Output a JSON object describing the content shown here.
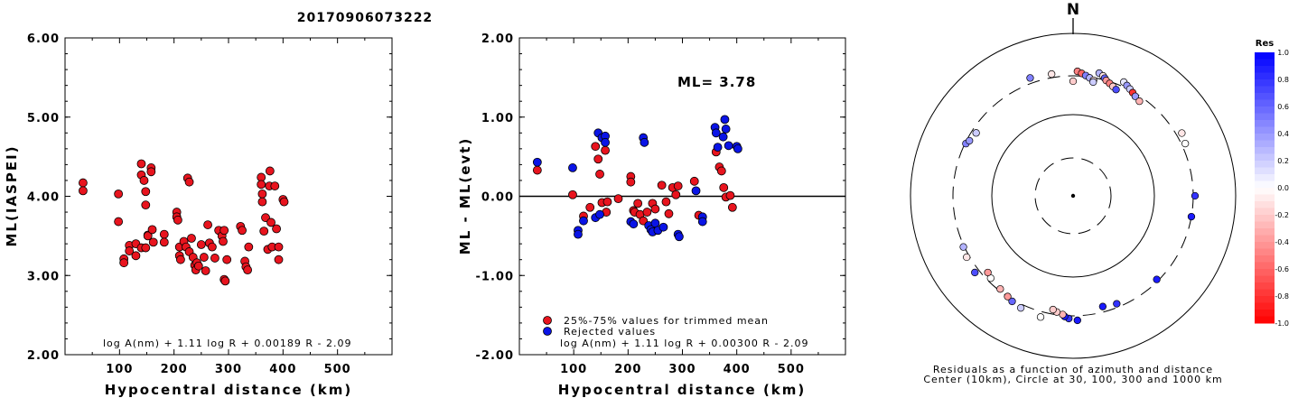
{
  "title": "20170906073222",
  "colors": {
    "trimmed": "#e8141e",
    "rejected": "#0a14e6",
    "outline": "#000000"
  },
  "chart_data": [
    {
      "type": "scatter",
      "xlabel": "Hypocentral distance (km)",
      "ylabel": "ML(IASPEI)",
      "xlim": [
        0,
        600
      ],
      "ylim": [
        2.0,
        6.0
      ],
      "xticks": [
        "100",
        "200",
        "300",
        "400",
        "500"
      ],
      "yticks": [
        "2.00",
        "3.00",
        "4.00",
        "5.00",
        "6.00"
      ],
      "formula": "log A(nm) + 1.11 log R + 0.00189 R - 2.09",
      "series": [
        {
          "points": [
            [
              33,
              4.17
            ],
            [
              33,
              4.07
            ],
            [
              98,
              4.03
            ],
            [
              98,
              3.68
            ],
            [
              108,
              3.21
            ],
            [
              108,
              3.16
            ],
            [
              118,
              3.38
            ],
            [
              118,
              3.31
            ],
            [
              130,
              3.4
            ],
            [
              130,
              3.25
            ],
            [
              140,
              4.41
            ],
            [
              140,
              4.27
            ],
            [
              140,
              3.35
            ],
            [
              145,
              4.2
            ],
            [
              148,
              4.06
            ],
            [
              148,
              3.89
            ],
            [
              148,
              3.35
            ],
            [
              152,
              3.51
            ],
            [
              152,
              3.5
            ],
            [
              158,
              4.36
            ],
            [
              158,
              4.31
            ],
            [
              160,
              3.58
            ],
            [
              162,
              3.42
            ],
            [
              182,
              3.52
            ],
            [
              182,
              3.42
            ],
            [
              205,
              3.8
            ],
            [
              205,
              3.74
            ],
            [
              207,
              3.7
            ],
            [
              210,
              3.36
            ],
            [
              210,
              3.25
            ],
            [
              212,
              3.2
            ],
            [
              218,
              3.43
            ],
            [
              222,
              3.36
            ],
            [
              225,
              4.23
            ],
            [
              228,
              4.18
            ],
            [
              228,
              3.3
            ],
            [
              232,
              3.47
            ],
            [
              235,
              3.23
            ],
            [
              238,
              3.13
            ],
            [
              240,
              3.07
            ],
            [
              242,
              3.16
            ],
            [
              245,
              3.12
            ],
            [
              250,
              3.39
            ],
            [
              255,
              3.23
            ],
            [
              258,
              3.06
            ],
            [
              262,
              3.64
            ],
            [
              265,
              3.41
            ],
            [
              270,
              3.36
            ],
            [
              275,
              3.22
            ],
            [
              282,
              3.57
            ],
            [
              288,
              3.5
            ],
            [
              290,
              3.43
            ],
            [
              292,
              3.57
            ],
            [
              292,
              2.95
            ],
            [
              294,
              2.93
            ],
            [
              297,
              3.2
            ],
            [
              322,
              3.62
            ],
            [
              325,
              3.57
            ],
            [
              330,
              3.18
            ],
            [
              332,
              3.11
            ],
            [
              335,
              3.07
            ],
            [
              337,
              3.36
            ],
            [
              360,
              4.24
            ],
            [
              360,
              4.15
            ],
            [
              362,
              4.03
            ],
            [
              362,
              3.93
            ],
            [
              365,
              3.56
            ],
            [
              368,
              3.73
            ],
            [
              372,
              3.33
            ],
            [
              375,
              4.13
            ],
            [
              376,
              4.32
            ],
            [
              378,
              3.67
            ],
            [
              380,
              3.36
            ],
            [
              385,
              4.13
            ],
            [
              388,
              3.59
            ],
            [
              392,
              3.36
            ],
            [
              392,
              3.2
            ],
            [
              400,
              3.96
            ],
            [
              402,
              3.93
            ]
          ]
        }
      ]
    },
    {
      "type": "scatter",
      "xlabel": "Hypocentral distance (km)",
      "ylabel": "ML - ML(evt)",
      "xlim": [
        0,
        600
      ],
      "ylim": [
        -2.0,
        2.0
      ],
      "xticks": [
        "100",
        "200",
        "300",
        "400",
        "500"
      ],
      "yticks": [
        "-2.00",
        "-1.00",
        "0.00",
        "1.00",
        "2.00"
      ],
      "annotation": "ML= 3.78",
      "formula": "log A(nm) + 1.11 log R + 0.00300 R - 2.09",
      "series": [
        {
          "name": "25%-75% values for trimmed mean",
          "points": [
            [
              33,
              0.33
            ],
            [
              98,
              0.02
            ],
            [
              118,
              -0.25
            ],
            [
              130,
              -0.14
            ],
            [
              140,
              0.63
            ],
            [
              145,
              0.47
            ],
            [
              148,
              0.28
            ],
            [
              152,
              -0.08
            ],
            [
              158,
              0.58
            ],
            [
              160,
              -0.2
            ],
            [
              162,
              -0.07
            ],
            [
              182,
              -0.03
            ],
            [
              205,
              0.25
            ],
            [
              205,
              0.18
            ],
            [
              210,
              -0.18
            ],
            [
              212,
              -0.2
            ],
            [
              218,
              -0.09
            ],
            [
              222,
              -0.23
            ],
            [
              228,
              -0.31
            ],
            [
              235,
              -0.2
            ],
            [
              245,
              -0.09
            ],
            [
              250,
              -0.16
            ],
            [
              262,
              0.14
            ],
            [
              270,
              -0.07
            ],
            [
              275,
              -0.22
            ],
            [
              282,
              0.11
            ],
            [
              288,
              0.02
            ],
            [
              292,
              0.13
            ],
            [
              322,
              0.19
            ],
            [
              330,
              -0.24
            ],
            [
              362,
              0.56
            ],
            [
              368,
              0.37
            ],
            [
              372,
              0.32
            ],
            [
              376,
              0.11
            ],
            [
              380,
              -0.01
            ],
            [
              388,
              0.01
            ],
            [
              392,
              -0.14
            ]
          ]
        },
        {
          "name": "Rejected values",
          "points": [
            [
              33,
              0.43
            ],
            [
              98,
              0.36
            ],
            [
              108,
              -0.43
            ],
            [
              108,
              -0.48
            ],
            [
              118,
              -0.31
            ],
            [
              140,
              -0.27
            ],
            [
              145,
              0.8
            ],
            [
              148,
              -0.23
            ],
            [
              152,
              0.74
            ],
            [
              158,
              0.76
            ],
            [
              158,
              0.68
            ],
            [
              205,
              -0.32
            ],
            [
              210,
              -0.35
            ],
            [
              228,
              0.74
            ],
            [
              230,
              0.68
            ],
            [
              238,
              -0.37
            ],
            [
              242,
              -0.42
            ],
            [
              245,
              -0.45
            ],
            [
              250,
              -0.34
            ],
            [
              255,
              -0.43
            ],
            [
              265,
              -0.39
            ],
            [
              292,
              -0.48
            ],
            [
              294,
              -0.51
            ],
            [
              325,
              0.07
            ],
            [
              337,
              -0.26
            ],
            [
              337,
              -0.32
            ],
            [
              360,
              0.87
            ],
            [
              362,
              0.8
            ],
            [
              365,
              0.62
            ],
            [
              375,
              0.75
            ],
            [
              378,
              0.97
            ],
            [
              380,
              0.85
            ],
            [
              385,
              0.64
            ],
            [
              400,
              0.63
            ],
            [
              402,
              0.6
            ]
          ]
        }
      ]
    },
    {
      "type": "scatter",
      "subtype": "polar",
      "north_label": "N",
      "caption_line1": "Residuals as a function of azimuth and distance",
      "caption_line2": "Center (10km), Circle at 30, 100, 300 and 1000 km",
      "colorbar_title": "Res",
      "colorbar_ticks": [
        "1.0",
        "0.8",
        "0.6",
        "0.4",
        "0.2",
        "0.0",
        "-0.2",
        "-0.4",
        "-0.6",
        "-0.8",
        "-1.0"
      ],
      "circles_km": [
        30,
        100,
        300,
        1000
      ],
      "stations": [
        [
          0,
          -0.2
        ],
        [
          2,
          -0.5
        ],
        [
          4,
          -0.6
        ],
        [
          6,
          0.5
        ],
        [
          8,
          0.3
        ],
        [
          10,
          -0.1
        ],
        [
          10,
          0.2
        ],
        [
          12,
          0.3
        ],
        [
          14,
          -0.1
        ],
        [
          15,
          0.6
        ],
        [
          16,
          -0.4
        ],
        [
          18,
          -0.5
        ],
        [
          20,
          -0.2
        ],
        [
          22,
          0.7
        ],
        [
          24,
          0.1
        ],
        [
          26,
          0.4
        ],
        [
          28,
          0.2
        ],
        [
          30,
          -0.8
        ],
        [
          32,
          0.4
        ],
        [
          35,
          -0.3
        ],
        [
          60,
          -0.1
        ],
        [
          65,
          0.0
        ],
        [
          90,
          0.8
        ],
        [
          100,
          0.9
        ],
        [
          135,
          0.9
        ],
        [
          158,
          0.8
        ],
        [
          165,
          0.9
        ],
        [
          178,
          0.9
        ],
        [
          182,
          0.8
        ],
        [
          184,
          0.9
        ],
        [
          185,
          -0.3
        ],
        [
          188,
          -0.2
        ],
        [
          190,
          -0.2
        ],
        [
          195,
          0.0
        ],
        [
          205,
          0.2
        ],
        [
          210,
          0.6
        ],
        [
          213,
          -0.4
        ],
        [
          218,
          -0.3
        ],
        [
          225,
          0.0
        ],
        [
          228,
          -0.4
        ],
        [
          232,
          0.7
        ],
        [
          240,
          -0.1
        ],
        [
          245,
          0.3
        ],
        [
          296,
          0.5
        ],
        [
          298,
          0.4
        ],
        [
          303,
          0.2
        ],
        [
          340,
          0.5
        ],
        [
          350,
          -0.1
        ]
      ]
    }
  ]
}
